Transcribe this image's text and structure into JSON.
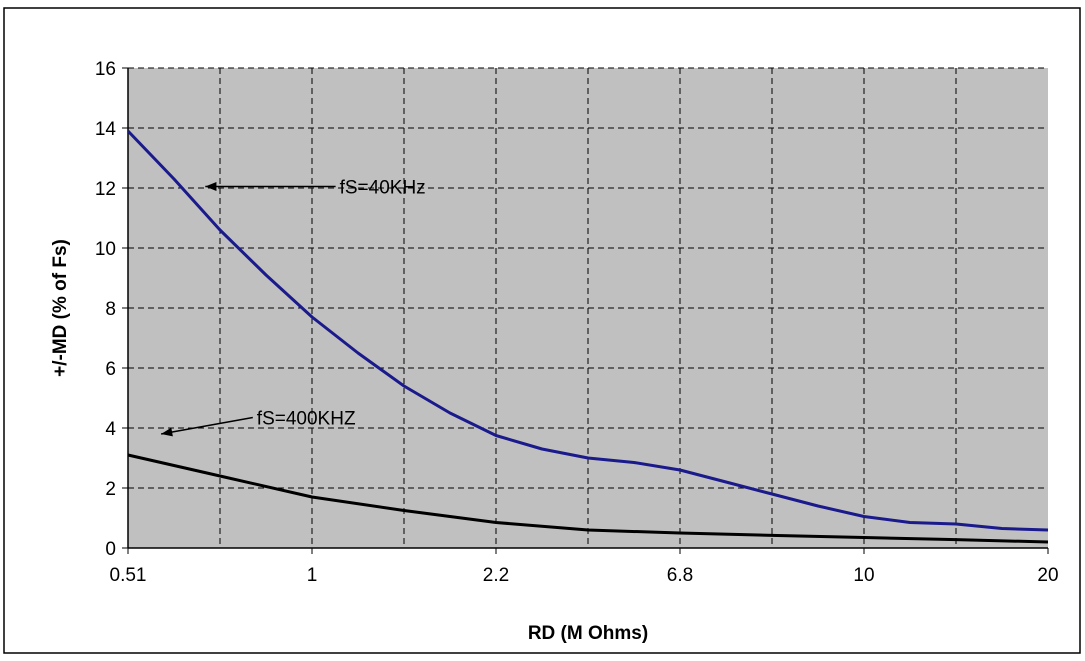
{
  "chart_data": {
    "type": "line",
    "title": "",
    "xlabel": "RD (M Ohms)",
    "ylabel": "+/-MD (% of Fs)",
    "categories": [
      "0.51",
      "1",
      "2.2",
      "6.8",
      "10",
      "20"
    ],
    "ylim": [
      0,
      16
    ],
    "yticks": [
      0,
      2,
      4,
      6,
      8,
      10,
      12,
      14,
      16
    ],
    "grid": true,
    "series": [
      {
        "name": "fS=40KHz",
        "color": "#1a1a8c",
        "points": [
          [
            0,
            13.9
          ],
          [
            0.25,
            12.3
          ],
          [
            0.5,
            10.6
          ],
          [
            0.75,
            9.1
          ],
          [
            1,
            7.7
          ],
          [
            1.25,
            6.5
          ],
          [
            1.5,
            5.4
          ],
          [
            1.75,
            4.5
          ],
          [
            2,
            3.75
          ],
          [
            2.25,
            3.3
          ],
          [
            2.5,
            3.0
          ],
          [
            2.75,
            2.85
          ],
          [
            3,
            2.6
          ],
          [
            3.25,
            2.2
          ],
          [
            3.5,
            1.8
          ],
          [
            3.75,
            1.4
          ],
          [
            4,
            1.05
          ],
          [
            4.25,
            0.85
          ],
          [
            4.5,
            0.8
          ],
          [
            4.75,
            0.65
          ],
          [
            5,
            0.6
          ]
        ]
      },
      {
        "name": "fS=400KHZ",
        "color": "#000000",
        "points": [
          [
            0,
            3.1
          ],
          [
            0.5,
            2.4
          ],
          [
            1,
            1.7
          ],
          [
            1.5,
            1.25
          ],
          [
            2,
            0.85
          ],
          [
            2.5,
            0.6
          ],
          [
            3,
            0.5
          ],
          [
            3.5,
            0.42
          ],
          [
            4,
            0.35
          ],
          [
            4.5,
            0.28
          ],
          [
            5,
            0.2
          ]
        ]
      }
    ],
    "annotations": [
      {
        "text": "fS=40KHz",
        "series": 0,
        "arrow_to": [
          0.42,
          12.05
        ],
        "text_at": [
          1.15,
          12.05
        ]
      },
      {
        "text": "fS=400KHZ",
        "series": 1,
        "arrow_to": [
          0.18,
          3.8
        ],
        "text_at": [
          0.7,
          4.35
        ]
      }
    ]
  }
}
